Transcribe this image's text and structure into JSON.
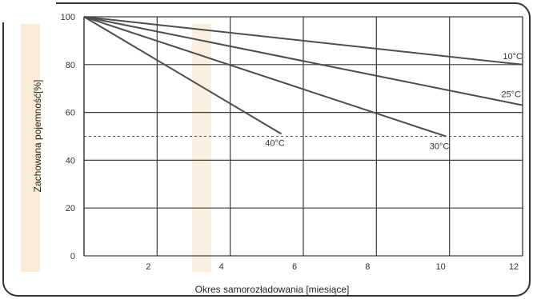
{
  "chart_data": {
    "type": "line",
    "xlabel": "Okres samorozładowania [miesiące]",
    "ylabel": "Zachowana pojemność[%]",
    "xlim": [
      0,
      12
    ],
    "ylim": [
      0,
      100
    ],
    "x_ticks": [
      2,
      4,
      6,
      8,
      10,
      12
    ],
    "y_ticks": [
      0,
      20,
      40,
      60,
      80,
      100
    ],
    "grid": true,
    "reference_line": {
      "y": 50,
      "style": "dashed"
    },
    "series": [
      {
        "name": "10°C",
        "x": [
          0,
          12
        ],
        "y": [
          100,
          80
        ]
      },
      {
        "name": "25°C",
        "x": [
          0,
          12
        ],
        "y": [
          100,
          63
        ]
      },
      {
        "name": "30°C",
        "x": [
          0,
          9.9
        ],
        "y": [
          100,
          50
        ]
      },
      {
        "name": "40°C",
        "x": [
          0,
          5.4
        ],
        "y": [
          100,
          51
        ]
      }
    ]
  },
  "colors": {
    "line": "#4d4d4d",
    "grid": "#3a3a3a",
    "frame": "#333333",
    "watermark": "#f6dcb8"
  }
}
